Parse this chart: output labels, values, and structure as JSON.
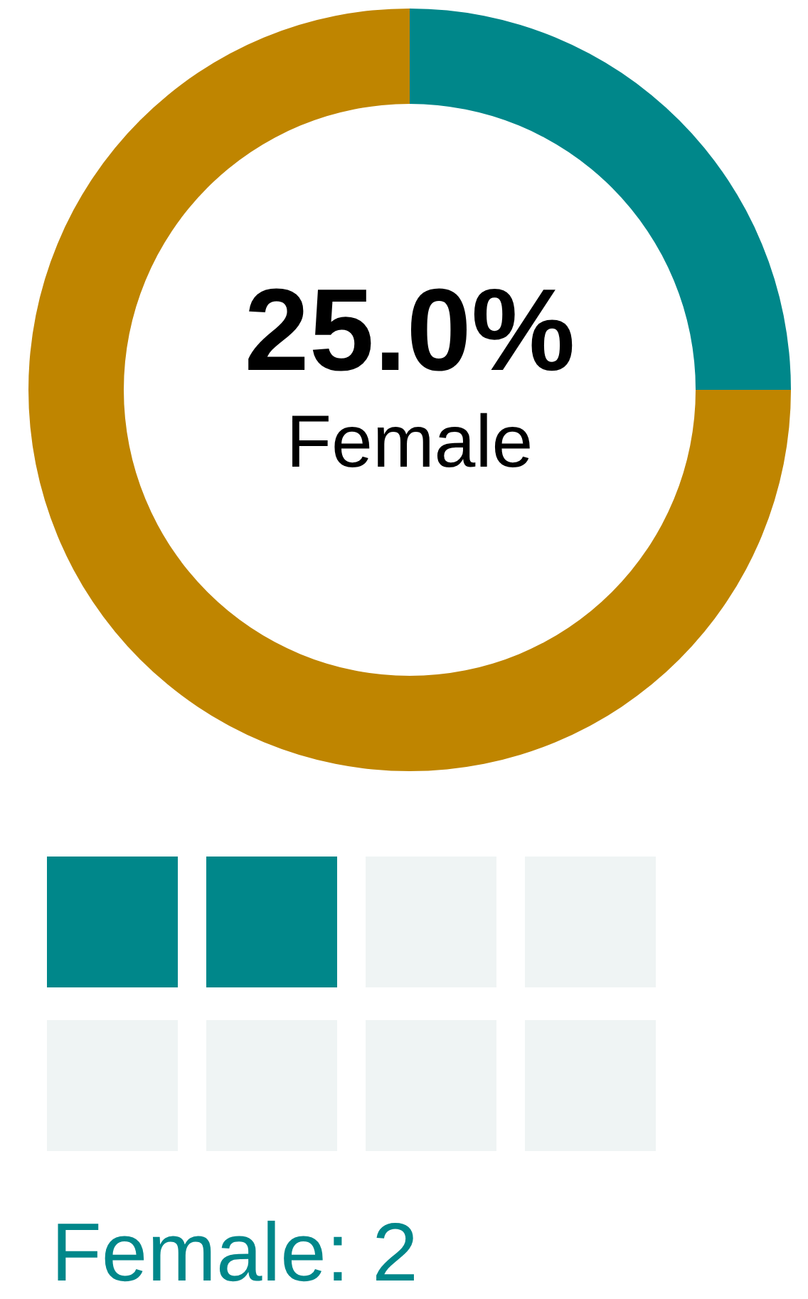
{
  "chart_data": [
    {
      "type": "donut",
      "categories": [
        "Female",
        null
      ],
      "values": [
        25,
        75
      ],
      "colors": [
        "#00878a",
        "#bf8500"
      ],
      "value_labels": [
        "25.0%",
        null
      ]
    },
    {
      "type": "other",
      "annotations": [
        "Female: 2"
      ]
    }
  ]
}
